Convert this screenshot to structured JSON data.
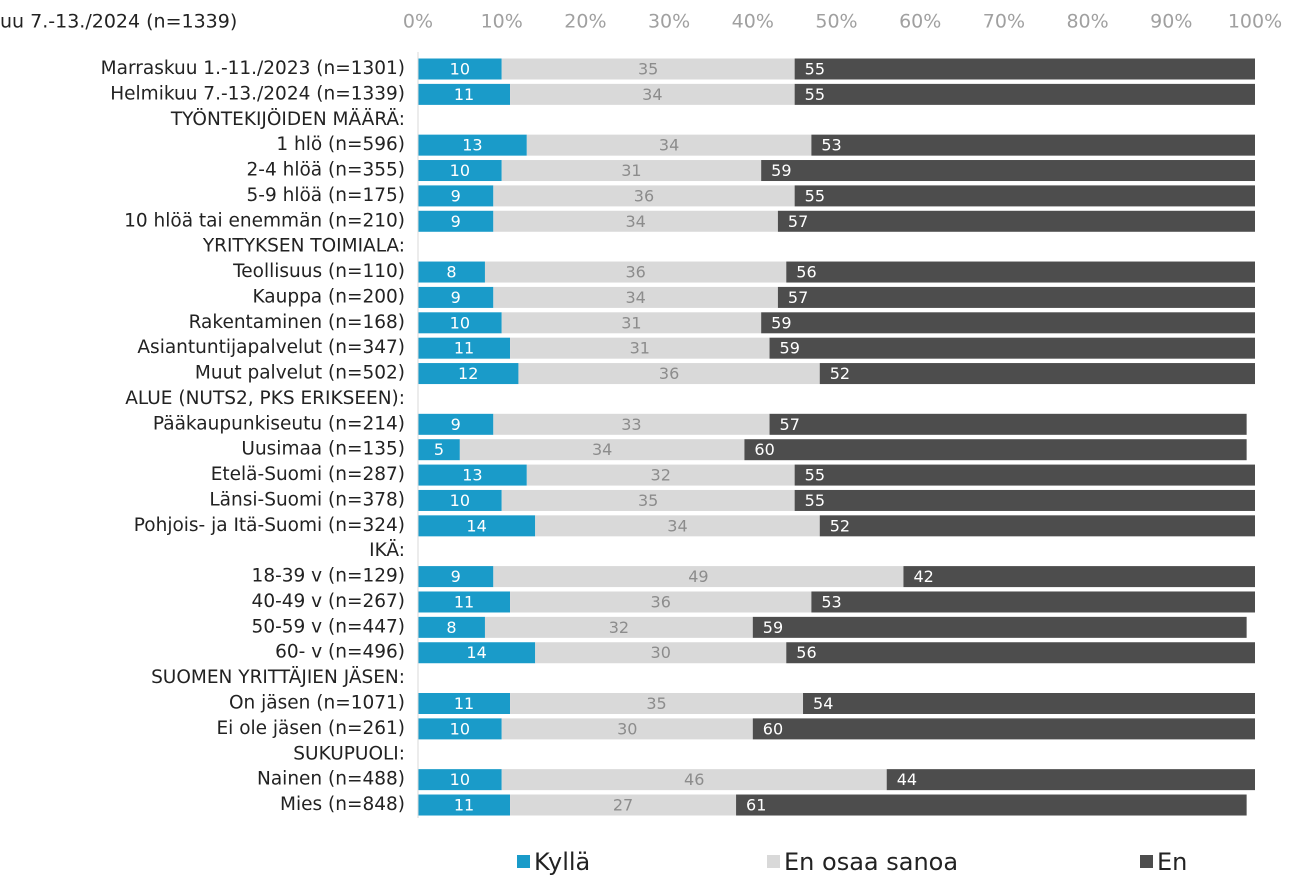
{
  "chart_data": {
    "type": "stacked-barh",
    "title": "uu  7.-13./2024 (n=1339)",
    "categories": [
      "Marraskuu 1.-11./2023 (n=1301)",
      "Helmikuu 7.-13./2024 (n=1339)",
      "TYÖNTEKIJÖIDEN MÄÄRÄ:",
      "1 hlö (n=596)",
      "2-4 hlöä (n=355)",
      "5-9 hlöä (n=175)",
      "10 hlöä tai enemmän (n=210)",
      "YRITYKSEN TOIMIALA:",
      "Teollisuus (n=110)",
      "Kauppa (n=200)",
      "Rakentaminen (n=168)",
      "Asiantuntijapalvelut (n=347)",
      "Muut palvelut (n=502)",
      "ALUE (NUTS2, PKS ERIKSEEN):",
      "Pääkaupunkiseutu (n=214)",
      "Uusimaa (n=135)",
      "Etelä-Suomi (n=287)",
      "Länsi-Suomi (n=378)",
      "Pohjois- ja Itä-Suomi (n=324)",
      "IKÄ:",
      "18-39 v (n=129)",
      "40-49 v (n=267)",
      "50-59 v (n=447)",
      "60- v (n=496)",
      "SUOMEN YRITTÄJIEN JÄSEN:",
      "On jäsen (n=1071)",
      "Ei ole jäsen (n=261)",
      "SUKUPUOLI:",
      "Nainen (n=488)",
      "Mies (n=848)"
    ],
    "series": [
      {
        "name": "Kyllä",
        "color": "#1a9bc9",
        "values": [
          10,
          11,
          null,
          13,
          10,
          9,
          9,
          null,
          8,
          9,
          10,
          11,
          12,
          null,
          9,
          5,
          13,
          10,
          14,
          null,
          9,
          11,
          8,
          14,
          null,
          11,
          10,
          null,
          10,
          11
        ]
      },
      {
        "name": "En osaa sanoa",
        "color": "#d9d9d9",
        "values": [
          35,
          34,
          null,
          34,
          31,
          36,
          34,
          null,
          36,
          34,
          31,
          31,
          36,
          null,
          33,
          34,
          32,
          35,
          34,
          null,
          49,
          36,
          32,
          30,
          null,
          35,
          30,
          null,
          46,
          27
        ]
      },
      {
        "name": "En",
        "color": "#4d4d4d",
        "values": [
          55,
          55,
          null,
          53,
          59,
          55,
          57,
          null,
          56,
          57,
          59,
          59,
          52,
          null,
          57,
          60,
          55,
          55,
          52,
          null,
          42,
          53,
          59,
          56,
          null,
          54,
          60,
          null,
          44,
          61
        ]
      }
    ],
    "xlim": [
      0,
      100
    ],
    "xticks": [
      {
        "value": 0,
        "label": "0%"
      },
      {
        "value": 10,
        "label": "10%"
      },
      {
        "value": 20,
        "label": "20%"
      },
      {
        "value": 30,
        "label": "30%"
      },
      {
        "value": 40,
        "label": "40%"
      },
      {
        "value": 50,
        "label": "50%"
      },
      {
        "value": 60,
        "label": "60%"
      },
      {
        "value": 70,
        "label": "70%"
      },
      {
        "value": 80,
        "label": "80%"
      },
      {
        "value": 90,
        "label": "90%"
      },
      {
        "value": 100,
        "label": "100%"
      }
    ],
    "legend": "bottom"
  }
}
